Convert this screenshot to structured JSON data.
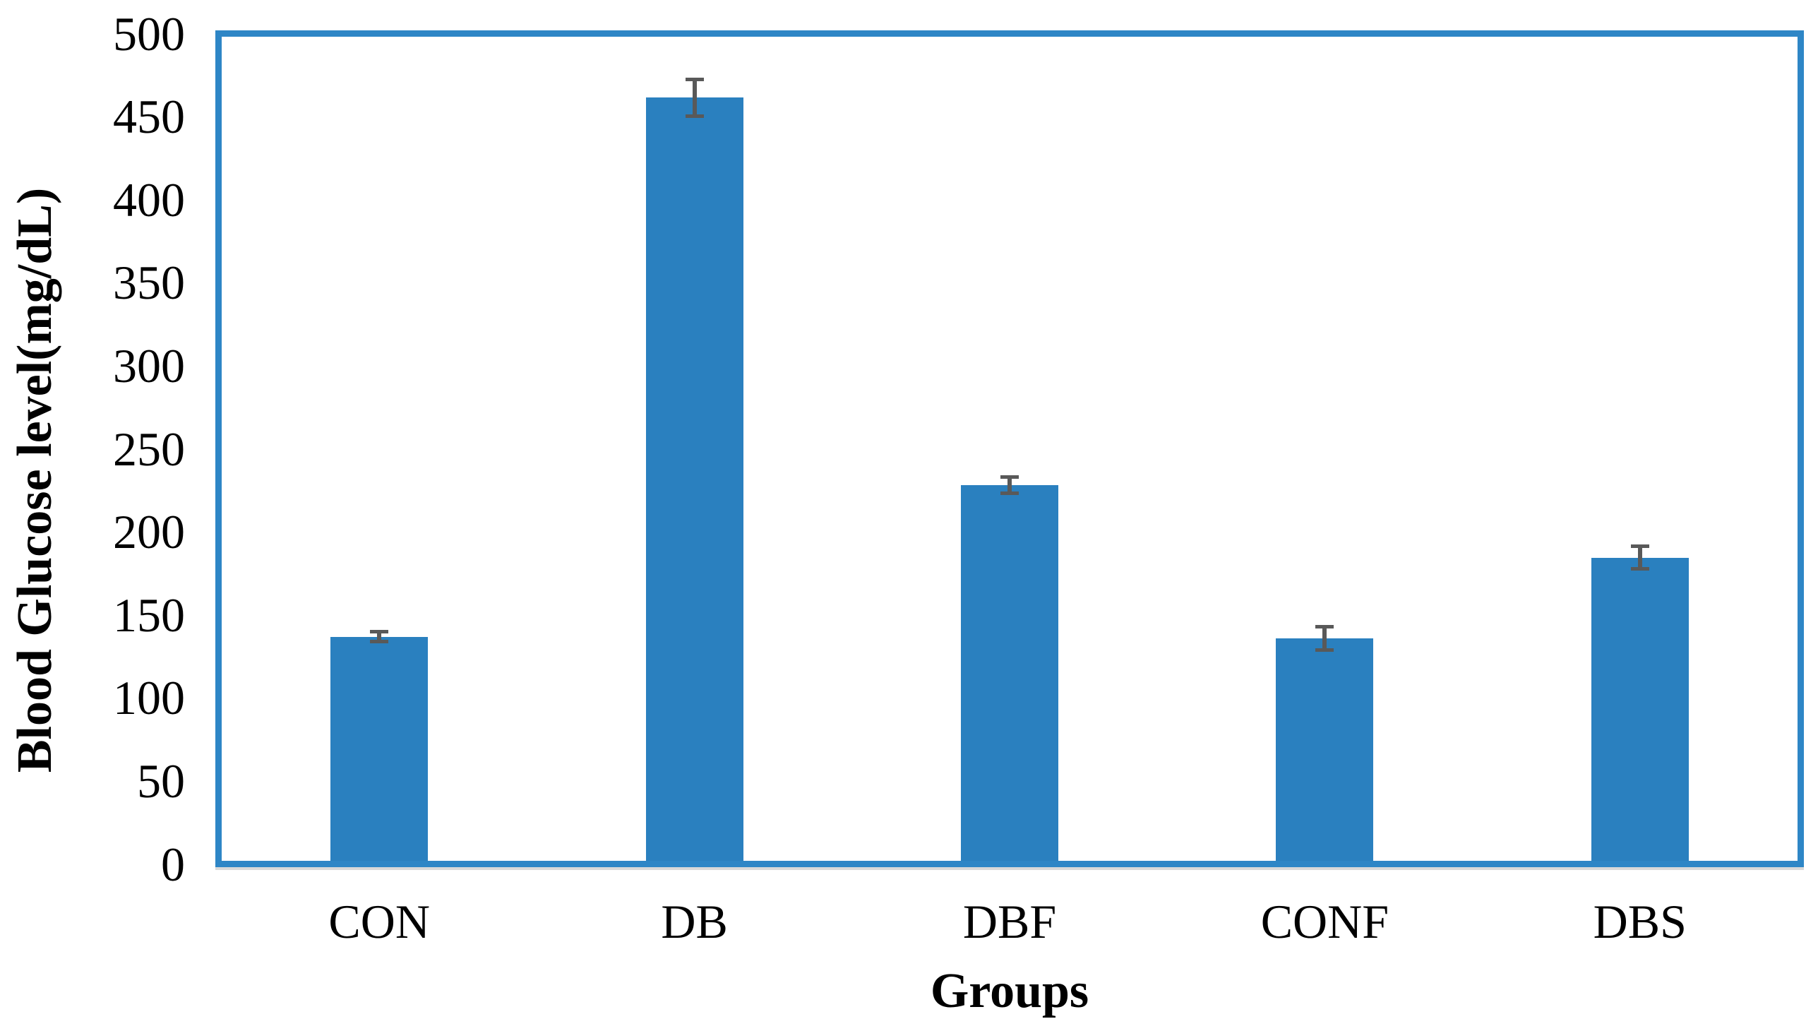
{
  "chart_data": {
    "type": "bar",
    "title": "",
    "xlabel": "Groups",
    "ylabel": "Blood Glucose level(mg/dL)",
    "categories": [
      "CON",
      "DB",
      "DBF",
      "CONF",
      "DBS"
    ],
    "values": [
      136,
      463,
      228,
      135,
      184
    ],
    "errors": [
      3,
      11,
      5,
      7,
      7
    ],
    "ylim": [
      0,
      500
    ],
    "ytick_step": 50,
    "yticks": [
      0,
      50,
      100,
      150,
      200,
      250,
      300,
      350,
      400,
      450,
      500
    ],
    "grid": false,
    "legend": false,
    "layout_hints": {
      "bar_width_fraction": 0.31,
      "error_bar_caps": true
    },
    "colors": {
      "bar": "#2A80BF",
      "plot_border": "#2E86C6",
      "error_bar": "#595959",
      "axis_shadow": "#d9d9d9",
      "text": "#000000",
      "background": "#ffffff"
    }
  }
}
